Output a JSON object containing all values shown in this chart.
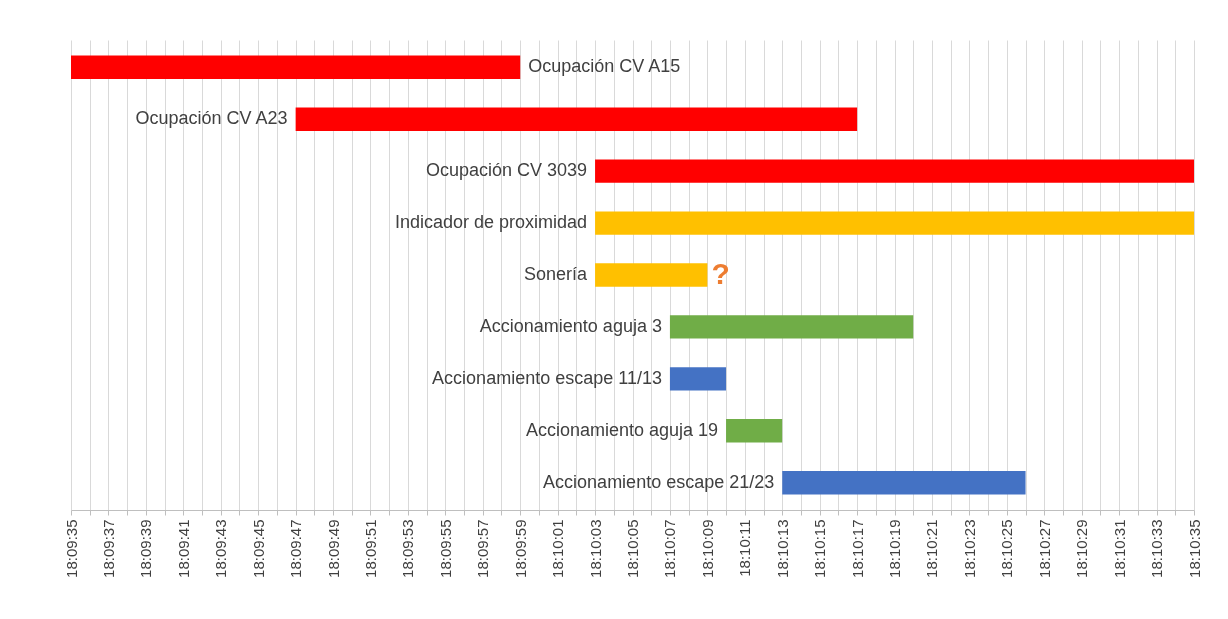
{
  "chart_data": {
    "type": "bar",
    "orientation": "horizontal",
    "grid": "x",
    "categories": [
      "Ocupación CV A15",
      "Ocupación CV A23",
      "Ocupación CV 3039",
      "Indicador de proximidad",
      "Sonería",
      "Accionamiento aguja 3",
      "Accionamiento escape 11/13",
      "Accionamiento aguja 19",
      "Accionamiento escape 21/23"
    ],
    "base": [
      18.159722,
      18.163056,
      18.1675,
      18.1675,
      18.1675,
      18.168611,
      18.168611,
      18.169444,
      18.170278
    ],
    "values": [
      0.006667,
      0.008333,
      0.008889,
      0.008889,
      0.001667,
      0.003611,
      0.000833,
      0.000833,
      0.003611
    ],
    "colors": [
      "#ff0000",
      "#ff0000",
      "#ff0000",
      "#ffc000",
      "#ffc000",
      "#70ad47",
      "#4472c4",
      "#70ad47",
      "#4472c4"
    ],
    "annotations": [
      {
        "text": "?",
        "x": 18.169167,
        "y": "Sonería"
      }
    ],
    "xlim": [
      18.159722,
      18.176389
    ],
    "xticks": [
      {
        "value": 18.159722,
        "label": "18:09:35"
      },
      {
        "value": 18.16,
        "label": null
      },
      {
        "value": 18.160278,
        "label": "18:09:37"
      },
      {
        "value": 18.160556,
        "label": null
      },
      {
        "value": 18.160833,
        "label": "18:09:39"
      },
      {
        "value": 18.161111,
        "label": null
      },
      {
        "value": 18.161389,
        "label": "18:09:41"
      },
      {
        "value": 18.161667,
        "label": null
      },
      {
        "value": 18.161944,
        "label": "18:09:43"
      },
      {
        "value": 18.162222,
        "label": null
      },
      {
        "value": 18.1625,
        "label": "18:09:45"
      },
      {
        "value": 18.162778,
        "label": null
      },
      {
        "value": 18.163056,
        "label": "18:09:47"
      },
      {
        "value": 18.163333,
        "label": null
      },
      {
        "value": 18.163611,
        "label": "18:09:49"
      },
      {
        "value": 18.163889,
        "label": null
      },
      {
        "value": 18.164167,
        "label": "18:09:51"
      },
      {
        "value": 18.164444,
        "label": null
      },
      {
        "value": 18.164722,
        "label": "18:09:53"
      },
      {
        "value": 18.165,
        "label": null
      },
      {
        "value": 18.165278,
        "label": "18:09:55"
      },
      {
        "value": 18.165556,
        "label": null
      },
      {
        "value": 18.165833,
        "label": "18:09:57"
      },
      {
        "value": 18.166111,
        "label": null
      },
      {
        "value": 18.166389,
        "label": "18:09:59"
      },
      {
        "value": 18.166667,
        "label": null
      },
      {
        "value": 18.166944,
        "label": "18:10:01"
      },
      {
        "value": 18.167222,
        "label": null
      },
      {
        "value": 18.1675,
        "label": "18:10:03"
      },
      {
        "value": 18.167778,
        "label": null
      },
      {
        "value": 18.168056,
        "label": "18:10:05"
      },
      {
        "value": 18.168333,
        "label": null
      },
      {
        "value": 18.168611,
        "label": "18:10:07"
      },
      {
        "value": 18.168889,
        "label": null
      },
      {
        "value": 18.169167,
        "label": "18:10:09"
      },
      {
        "value": 18.169444,
        "label": null
      },
      {
        "value": 18.169722,
        "label": "18:10:11"
      },
      {
        "value": 18.17,
        "label": null
      },
      {
        "value": 18.170278,
        "label": "18:10:13"
      },
      {
        "value": 18.170556,
        "label": null
      },
      {
        "value": 18.170833,
        "label": "18:10:15"
      },
      {
        "value": 18.171111,
        "label": null
      },
      {
        "value": 18.171389,
        "label": "18:10:17"
      },
      {
        "value": 18.171667,
        "label": null
      },
      {
        "value": 18.171944,
        "label": "18:10:19"
      },
      {
        "value": 18.172222,
        "label": null
      },
      {
        "value": 18.1725,
        "label": "18:10:21"
      },
      {
        "value": 18.172778,
        "label": null
      },
      {
        "value": 18.173056,
        "label": "18:10:23"
      },
      {
        "value": 18.173333,
        "label": null
      },
      {
        "value": 18.173611,
        "label": "18:10:25"
      },
      {
        "value": 18.173889,
        "label": null
      },
      {
        "value": 18.174167,
        "label": "18:10:27"
      },
      {
        "value": 18.174444,
        "label": null
      },
      {
        "value": 18.174722,
        "label": "18:10:29"
      },
      {
        "value": 18.175,
        "label": null
      },
      {
        "value": 18.175278,
        "label": "18:10:31"
      },
      {
        "value": 18.175556,
        "label": null
      },
      {
        "value": 18.175833,
        "label": "18:10:33"
      },
      {
        "value": 18.176111,
        "label": null
      },
      {
        "value": 18.176389,
        "label": "18:10:35"
      }
    ]
  }
}
